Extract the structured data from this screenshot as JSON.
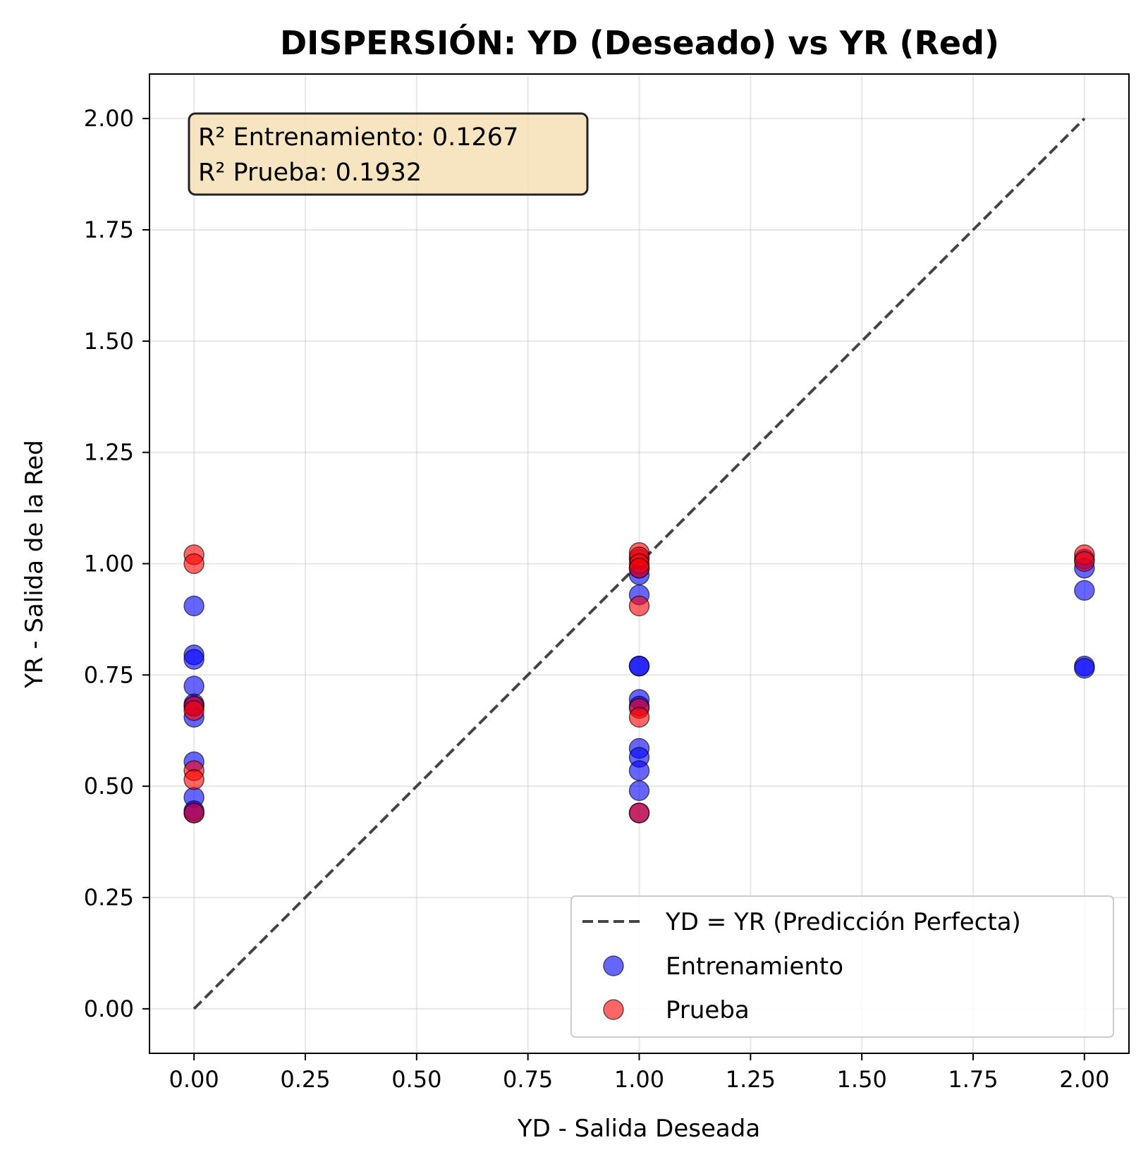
{
  "chart_data": {
    "type": "scatter",
    "title": "DISPERSIÓN: YD (Deseado) vs YR (Red)",
    "xlabel": "YD - Salida Deseada",
    "ylabel": "YR - Salida de la Red",
    "xlim": [
      -0.1,
      2.1
    ],
    "ylim": [
      -0.1,
      2.1
    ],
    "xticks": [
      "0.00",
      "0.25",
      "0.50",
      "0.75",
      "1.00",
      "1.25",
      "1.50",
      "1.75",
      "2.00"
    ],
    "yticks": [
      "0.00",
      "0.25",
      "0.50",
      "0.75",
      "1.00",
      "1.25",
      "1.50",
      "1.75",
      "2.00"
    ],
    "xtick_values": [
      0,
      0.25,
      0.5,
      0.75,
      1.0,
      1.25,
      1.5,
      1.75,
      2.0
    ],
    "ytick_values": [
      0,
      0.25,
      0.5,
      0.75,
      1.0,
      1.25,
      1.5,
      1.75,
      2.0
    ],
    "grid": true,
    "legend_position": "lower-right",
    "reference_line": {
      "label": "YD = YR (Predicción Perfecta)",
      "x": [
        0,
        2
      ],
      "y": [
        0,
        2
      ],
      "color": "#444444",
      "style": "dashed"
    },
    "series": [
      {
        "name": "Entrenamiento",
        "color": "#0000ff",
        "points": [
          [
            0,
            0.905
          ],
          [
            0,
            0.795
          ],
          [
            0,
            0.785
          ],
          [
            0,
            0.725
          ],
          [
            0,
            0.685
          ],
          [
            0,
            0.68
          ],
          [
            0,
            0.655
          ],
          [
            0,
            0.555
          ],
          [
            0,
            0.475
          ],
          [
            0,
            0.44
          ],
          [
            0,
            0.445
          ],
          [
            1,
            1.01
          ],
          [
            1,
            0.99
          ],
          [
            1,
            0.975
          ],
          [
            1,
            0.93
          ],
          [
            1,
            0.77
          ],
          [
            1,
            0.77
          ],
          [
            1,
            0.695
          ],
          [
            1,
            0.68
          ],
          [
            1,
            0.585
          ],
          [
            1,
            0.565
          ],
          [
            1,
            0.535
          ],
          [
            1,
            0.49
          ],
          [
            1,
            0.44
          ],
          [
            2,
            1.01
          ],
          [
            2,
            0.99
          ],
          [
            2,
            0.94
          ],
          [
            2,
            0.77
          ],
          [
            2,
            0.765
          ]
        ]
      },
      {
        "name": "Prueba",
        "color": "#ff0000",
        "points": [
          [
            0,
            1.02
          ],
          [
            0,
            1.0
          ],
          [
            0,
            0.68
          ],
          [
            0,
            0.67
          ],
          [
            0,
            0.535
          ],
          [
            0,
            0.515
          ],
          [
            0,
            0.44
          ],
          [
            1,
            1.025
          ],
          [
            1,
            1.015
          ],
          [
            1,
            1.0
          ],
          [
            1,
            0.99
          ],
          [
            1,
            0.905
          ],
          [
            1,
            0.675
          ],
          [
            1,
            0.655
          ],
          [
            1,
            0.44
          ],
          [
            2,
            1.02
          ],
          [
            2,
            1.005
          ]
        ]
      }
    ],
    "annotation": {
      "lines": [
        "R² Entrenamiento: 0.1267",
        "R² Prueba: 0.1932"
      ],
      "background": "#f5deb3"
    }
  }
}
